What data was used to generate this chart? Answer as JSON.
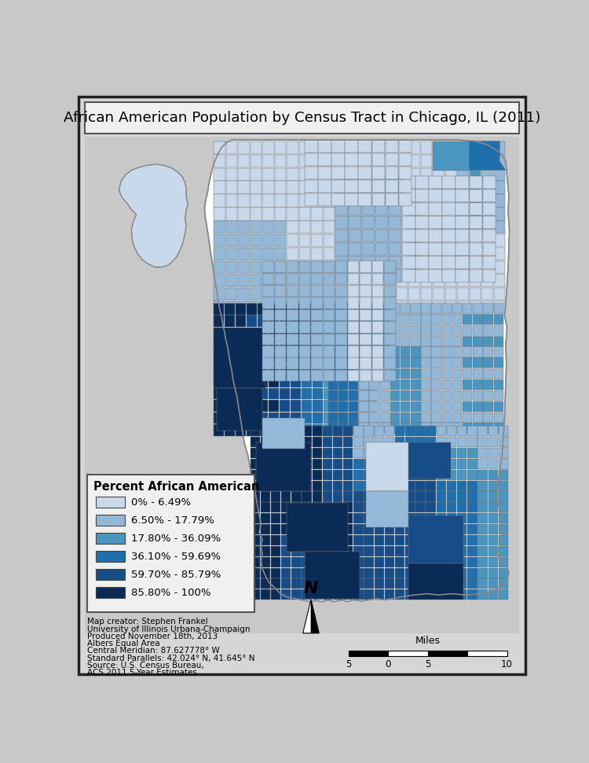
{
  "title": "African American Population by Census Tract in Chicago, IL (2011)",
  "legend_title": "Percent African American",
  "legend_items": [
    {
      "label": "0% - 6.49%",
      "color": "#c9d9ec"
    },
    {
      "label": "6.50% - 17.79%",
      "color": "#93b8d8"
    },
    {
      "label": "17.80% - 36.09%",
      "color": "#4a96c0"
    },
    {
      "label": "36.10% - 59.69%",
      "color": "#1f6fad"
    },
    {
      "label": "59.70% - 85.79%",
      "color": "#164d88"
    },
    {
      "label": "85.80% - 100%",
      "color": "#0b2b57"
    }
  ],
  "metadata_lines": [
    "Map creator: Stephen Frankel",
    "University of Illinois Urbana-Champaign",
    "Produced November 18th, 2013",
    "Albers Equal Area",
    "Central Meridian: 87.627778° W",
    "Standard Parallels: 42.024° N, 41.645° N",
    "Source: U.S. Census Bureau,",
    "ACS 2011 5-Year Estimates"
  ],
  "scale_label": "Miles",
  "bg_color": "#c8c8c8",
  "outer_bg": "#d6d6d6",
  "border_color": "#222222",
  "title_box_color": "#f0f0f0",
  "legend_box_color": "#f0f0f0",
  "map_water_color": "#c8c8c8",
  "census_line_color": "#707070",
  "chicago_border_color": "#888888"
}
